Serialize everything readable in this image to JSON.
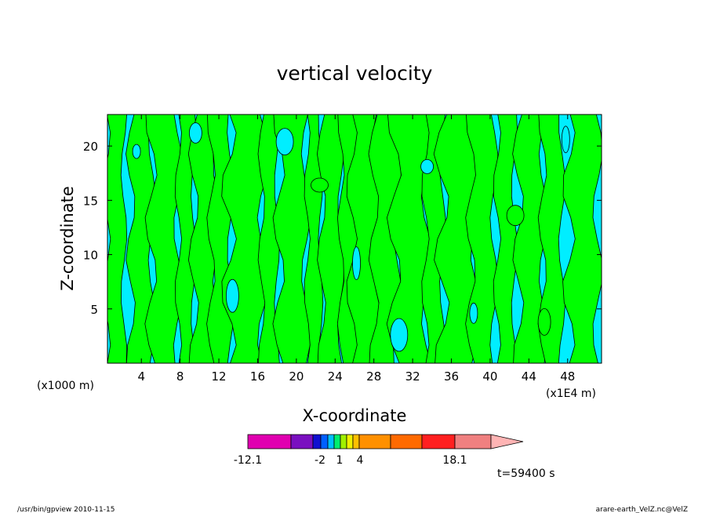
{
  "chart_data": {
    "type": "heatmap",
    "title": "vertical velocity",
    "xlabel": "X-coordinate",
    "ylabel": "Z-coordinate",
    "x_unit_left": "(x1000 m)",
    "x_unit_right": "(x1E4 m)",
    "x_ticks": [
      4,
      8,
      12,
      16,
      20,
      24,
      28,
      32,
      36,
      40,
      44,
      48
    ],
    "y_ticks": [
      5,
      10,
      15,
      20
    ],
    "xlim": [
      0.5,
      51.5
    ],
    "ylim": [
      0,
      22.9
    ],
    "time_label": "t=59400 s",
    "colors": {
      "updraft": "#00ff00",
      "downdraft": "#00eeff",
      "contour": "#000000"
    },
    "updraft_columns": [
      {
        "x": 1.3,
        "width": 1.8
      },
      {
        "x": 4.0,
        "width": 2.2
      },
      {
        "x": 6.4,
        "width": 2.8
      },
      {
        "x": 8.6,
        "width": 1.6
      },
      {
        "x": 10.6,
        "width": 2.4
      },
      {
        "x": 12.2,
        "width": 2.0
      },
      {
        "x": 14.8,
        "width": 3.6
      },
      {
        "x": 17.2,
        "width": 1.6
      },
      {
        "x": 19.6,
        "width": 2.8
      },
      {
        "x": 21.8,
        "width": 1.4
      },
      {
        "x": 23.6,
        "width": 2.0
      },
      {
        "x": 25.4,
        "width": 1.6
      },
      {
        "x": 27.0,
        "width": 2.6
      },
      {
        "x": 29.2,
        "width": 2.4
      },
      {
        "x": 31.8,
        "width": 3.4
      },
      {
        "x": 34.2,
        "width": 1.8
      },
      {
        "x": 36.8,
        "width": 3.6
      },
      {
        "x": 39.2,
        "width": 2.4
      },
      {
        "x": 41.6,
        "width": 1.8
      },
      {
        "x": 44.2,
        "width": 2.6
      },
      {
        "x": 46.4,
        "width": 2.0
      },
      {
        "x": 49.6,
        "width": 3.0
      }
    ],
    "colorbar": {
      "colors": [
        "#e000b0",
        "#7a10c0",
        "#1010d0",
        "#0060ff",
        "#00c0ff",
        "#00ee70",
        "#a0f000",
        "#f0f000",
        "#ffc000",
        "#ff9000",
        "#ff6a00",
        "#ff2020",
        "#f08080",
        "#ffb4b4"
      ],
      "tick_labels": [
        "-12.1",
        "-2",
        "1",
        "4",
        "18.1"
      ]
    }
  },
  "footer": {
    "left": "/usr/bin/gpview   2010-11-15",
    "right": "arare-earth_VelZ.nc@VelZ"
  }
}
